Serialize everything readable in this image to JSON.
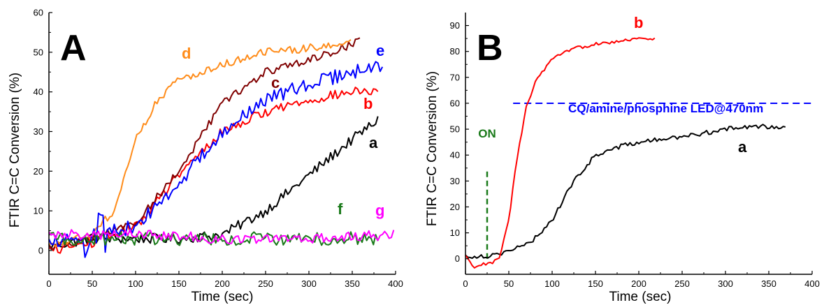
{
  "figure": {
    "panels": [
      {
        "letter": "A",
        "xlabel": "Time (sec)",
        "ylabel": "FTIR C=C Conversion (%)",
        "xticks": [
          "0",
          "50",
          "100",
          "150",
          "200",
          "250",
          "300",
          "350",
          "400"
        ],
        "yticks": [
          "0",
          "10",
          "20",
          "30",
          "40",
          "50",
          "60"
        ]
      },
      {
        "letter": "B",
        "xlabel": "Time (sec)",
        "ylabel": "FTIR C=C Conversion (%)",
        "xticks": [
          "0",
          "50",
          "100",
          "150",
          "200",
          "250",
          "300",
          "350",
          "400"
        ],
        "yticks": [
          "0",
          "10",
          "20",
          "30",
          "40",
          "50",
          "60",
          "70",
          "80",
          "90"
        ],
        "annotations": {
          "on": "ON",
          "light": "CQ/amine/phosphine LED@470nm"
        }
      }
    ]
  },
  "chart_data": [
    {
      "type": "line",
      "xlim": [
        0,
        400
      ],
      "ylim": [
        -6,
        60
      ],
      "grid": false,
      "series": [
        {
          "name": "a",
          "color": "#000000",
          "noise": 1.3,
          "x": [
            0,
            50,
            100,
            150,
            200,
            250,
            300,
            350,
            380
          ],
          "y": [
            1,
            3,
            3,
            3,
            4,
            10,
            19,
            28,
            33
          ]
        },
        {
          "name": "b",
          "color": "#ff0000",
          "noise": 1.2,
          "x": [
            0,
            50,
            100,
            150,
            200,
            250,
            300,
            350,
            380
          ],
          "y": [
            0,
            2,
            6,
            19,
            30,
            35,
            38,
            40,
            40
          ]
        },
        {
          "name": "c",
          "color": "#800000",
          "noise": 1.0,
          "x": [
            0,
            50,
            100,
            150,
            200,
            250,
            300,
            350,
            360
          ],
          "y": [
            1,
            3,
            7,
            20,
            37,
            45,
            48,
            52,
            53
          ]
        },
        {
          "name": "d",
          "color": "#ff8c1a",
          "noise": 1.0,
          "x": [
            0,
            50,
            75,
            100,
            125,
            150,
            200,
            250,
            300,
            350
          ],
          "y": [
            1,
            4,
            10,
            28,
            38,
            43,
            47,
            50,
            51,
            53
          ]
        },
        {
          "name": "e",
          "color": "#0000ff",
          "noise": 1.8,
          "x": [
            0,
            25,
            50,
            100,
            150,
            200,
            250,
            300,
            350,
            385
          ],
          "y": [
            2,
            3,
            4,
            6,
            17,
            30,
            38,
            42,
            45,
            47
          ]
        },
        {
          "name": "f",
          "color": "#1a7a1a",
          "noise": 1.7,
          "x": [
            0,
            100,
            200,
            300,
            380
          ],
          "y": [
            3,
            3,
            3,
            3,
            3
          ]
        },
        {
          "name": "g",
          "color": "#ff00ff",
          "noise": 1.3,
          "x": [
            0,
            100,
            200,
            300,
            400
          ],
          "y": [
            4,
            4,
            3,
            3,
            4
          ]
        }
      ],
      "xlabel": "Time (sec)",
      "ylabel": "FTIR C=C Conversion (%)"
    },
    {
      "type": "line",
      "xlim": [
        0,
        400
      ],
      "ylim": [
        -6,
        95
      ],
      "grid": false,
      "series": [
        {
          "name": "a",
          "color": "#000000",
          "noise": 0.9,
          "x": [
            0,
            25,
            50,
            75,
            100,
            125,
            150,
            175,
            200,
            250,
            300,
            335,
            370
          ],
          "y": [
            1,
            1,
            3,
            6,
            15,
            30,
            40,
            43,
            45,
            47,
            50,
            51,
            51
          ]
        },
        {
          "name": "b",
          "color": "#ff0000",
          "noise": 0.7,
          "x": [
            0,
            10,
            20,
            30,
            40,
            50,
            60,
            70,
            80,
            100,
            125,
            150,
            200,
            220
          ],
          "y": [
            1,
            -4,
            -2,
            -2,
            1,
            15,
            40,
            58,
            68,
            77,
            81,
            83,
            85,
            85
          ]
        }
      ],
      "ref_lines": [
        {
          "label": "CQ/amine/phosphine LED@470nm",
          "color": "#0000ff",
          "y": 60,
          "x": [
            55,
            400
          ]
        },
        {
          "label": "ON",
          "color": "#1a7a1a",
          "x": 25,
          "y": [
            0,
            35
          ]
        }
      ],
      "xlabel": "Time (sec)",
      "ylabel": "FTIR C=C Conversion (%)"
    }
  ]
}
